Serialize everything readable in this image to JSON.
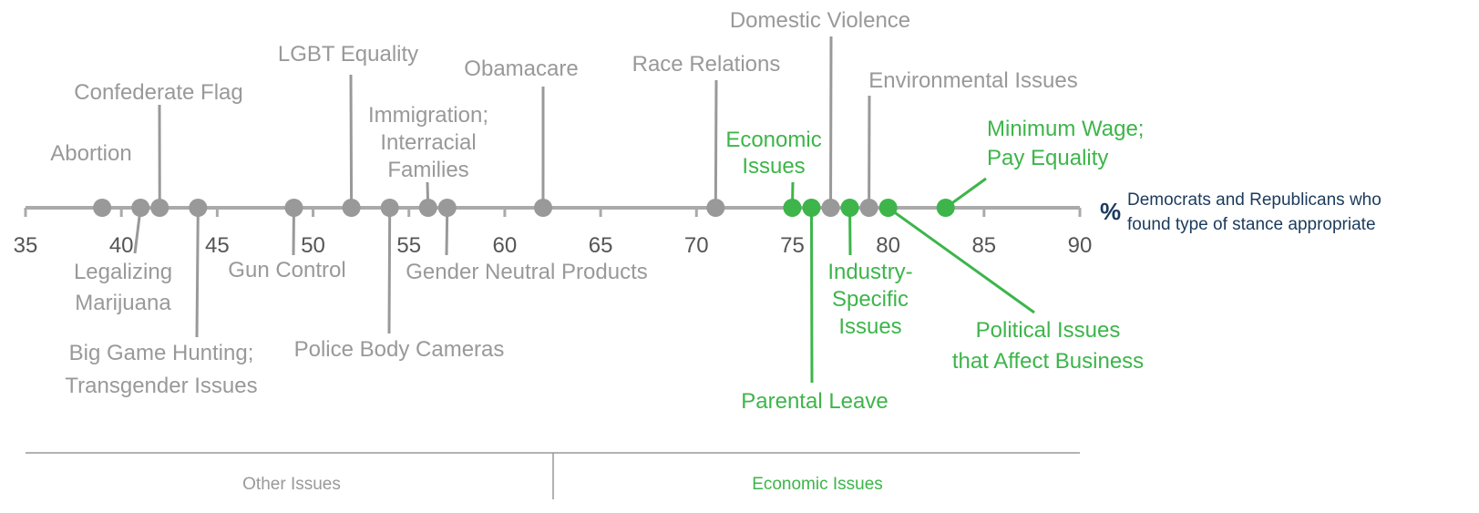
{
  "chart_data": {
    "type": "strip",
    "xlim": [
      35,
      90
    ],
    "xticks": [
      35,
      40,
      45,
      50,
      55,
      60,
      65,
      70,
      75,
      80,
      85,
      90
    ],
    "x_unit": "%",
    "x_label": [
      "Democrats and Republicans who",
      "found type of stance appropriate"
    ],
    "axis_color": "#aaaaaa",
    "series": [
      {
        "name": "Other Issues",
        "color": "#999999",
        "labels": [
          [
            "Abortion"
          ],
          [
            "Legalizing",
            "Marijuana"
          ],
          [
            "Confederate Flag"
          ],
          [
            "Big Game Hunting;",
            "Transgender Issues"
          ],
          [
            "Gun Control"
          ],
          [
            "LGBT Equality"
          ],
          [
            "Police Body Cameras"
          ],
          [
            "Immigration;",
            "Interracial",
            "Families"
          ],
          [
            "Gender Neutral Products"
          ],
          [
            "Obamacare"
          ],
          [
            "Race Relations"
          ],
          [
            "Domestic Violence"
          ],
          [
            "Environmental Issues"
          ]
        ],
        "values": [
          39,
          41,
          42,
          44,
          49,
          52,
          54,
          56,
          57,
          62,
          71,
          77,
          79
        ]
      },
      {
        "name": "Economic Issues",
        "color": "#3db54a",
        "labels": [
          [
            "Economic",
            "Issues"
          ],
          [
            "Parental Leave"
          ],
          [
            "Industry-",
            "Specific",
            "Issues"
          ],
          [
            "Political Issues",
            "that Affect Business"
          ],
          [
            "Minimum Wage;",
            "Pay Equality"
          ]
        ],
        "values": [
          75,
          76,
          78,
          80,
          83
        ]
      }
    ]
  }
}
